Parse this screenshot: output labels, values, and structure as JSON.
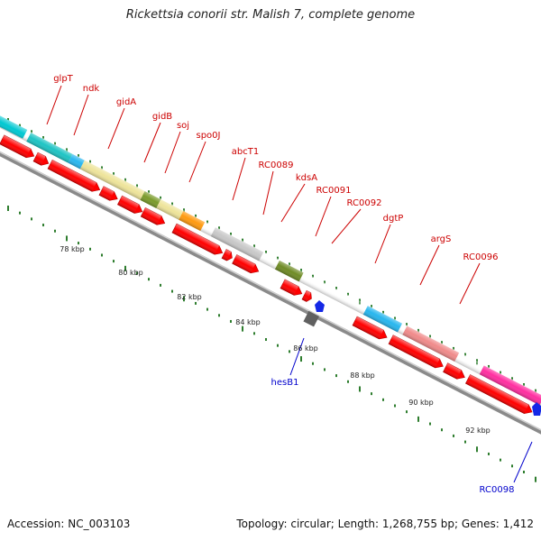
{
  "title": "Rickettsia conorii str. Malish 7, complete genome",
  "footer": {
    "accession": "Accession: NC_003103",
    "summary": "Topology: circular; Length: 1,268,755 bp; Genes: 1,412"
  },
  "colors": {
    "backbone": "#8a8a8a",
    "cds": "#ff0000",
    "cds_stroke": "#b40000",
    "tick": "#2e7d2e",
    "forward_label": "#cc0000",
    "reverse_label": "#0000cc"
  },
  "chart_data": {
    "type": "genome-map",
    "ruler_labels": [
      "78 kbp",
      "80 kbp",
      "82 kbp",
      "84 kbp",
      "86 kbp",
      "88 kbp",
      "90 kbp",
      "92 kbp"
    ],
    "forward_labels": [
      "glpT",
      "ndk",
      "gidA",
      "gidB",
      "soj",
      "spo0J",
      "abcT1",
      "RC0089",
      "kdsA",
      "RC0091",
      "RC0092",
      "dgtP",
      "argS",
      "RC0096"
    ],
    "reverse_labels": [
      "hesB1",
      "RC0098"
    ]
  }
}
